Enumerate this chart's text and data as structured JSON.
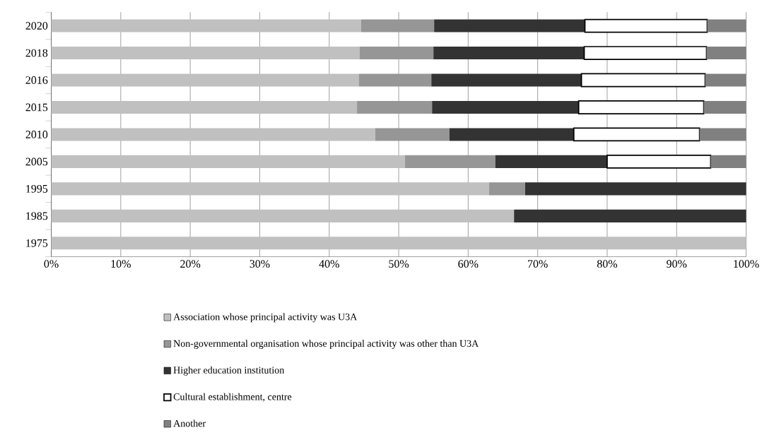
{
  "chart_data": {
    "type": "bar",
    "orientation": "horizontal",
    "stacked": true,
    "categories": [
      "2020",
      "2018",
      "2016",
      "2015",
      "2010",
      "2005",
      "1995",
      "1985",
      "1975"
    ],
    "series": [
      {
        "name": "Association whose principal activity was U3A",
        "color": "#c0c0c0",
        "values": [
          44.6,
          44.4,
          44.3,
          44.0,
          46.6,
          50.9,
          63.0,
          66.6,
          100
        ]
      },
      {
        "name": "Non-governmental organisation whose principal activity was other than U3A",
        "color": "#969696",
        "values": [
          10.5,
          10.6,
          10.4,
          10.8,
          10.7,
          13.0,
          5.2,
          null,
          null
        ]
      },
      {
        "name": "Higher education institution",
        "color": "#333333",
        "values": [
          21.7,
          21.7,
          21.6,
          21.1,
          17.9,
          16.1,
          31.8,
          33.4,
          null
        ]
      },
      {
        "name": "Cultural establishment, centre",
        "color": "#ffffff",
        "values": [
          17.6,
          17.6,
          17.8,
          18.0,
          18.1,
          14.9,
          null,
          null,
          null
        ]
      },
      {
        "name": "Another",
        "color": "#808080",
        "values": [
          5.6,
          5.7,
          5.9,
          6.1,
          6.7,
          5.1,
          null,
          null,
          null
        ]
      }
    ],
    "xlim": [
      0,
      100
    ],
    "xticks": [
      {
        "value": 0,
        "label": "0%"
      },
      {
        "value": 10,
        "label": "10%"
      },
      {
        "value": 20,
        "label": "20%"
      },
      {
        "value": 30,
        "label": "30%"
      },
      {
        "value": 40,
        "label": "40%"
      },
      {
        "value": 50,
        "label": "50%"
      },
      {
        "value": 60,
        "label": "60%"
      },
      {
        "value": 70,
        "label": "70%"
      },
      {
        "value": 80,
        "label": "80%"
      },
      {
        "value": 90,
        "label": "90%"
      },
      {
        "value": 100,
        "label": "100%"
      }
    ],
    "grid": "x",
    "legend": "bottom"
  }
}
